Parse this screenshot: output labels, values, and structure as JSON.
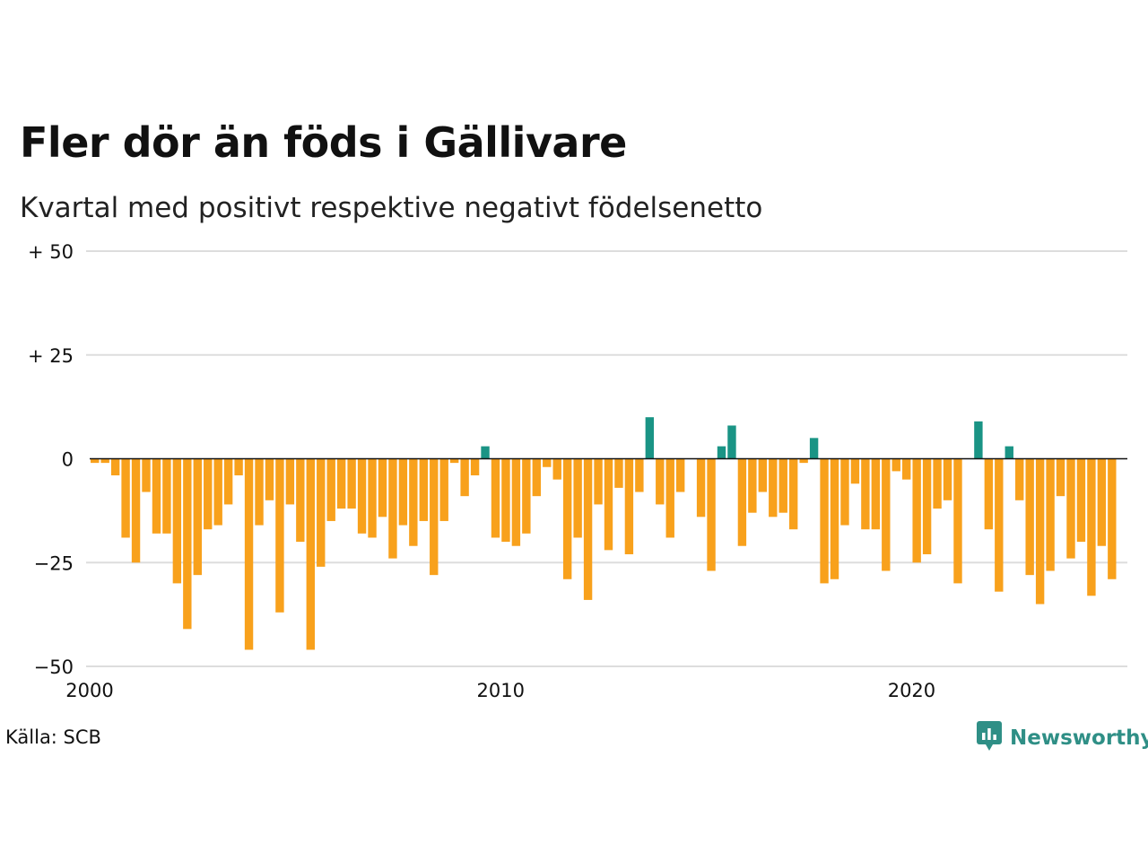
{
  "header": {
    "title": "Fler dör än föds i Gällivare",
    "subtitle": "Kvartal med positivt respektive negativt födelsenetto"
  },
  "footer": {
    "source": "Källa: SCB",
    "brand": "Newsworthy",
    "brand_icon": "bar-chart-speech-bubble-icon"
  },
  "colors": {
    "positive": "#1a9485",
    "negative": "#f8a11c",
    "grid": "#dddddd",
    "zero_line": "#111111",
    "brand": "#2f8f86"
  },
  "chart_data": {
    "type": "bar",
    "xlim": [
      2000,
      2025.25
    ],
    "ylim": [
      -50,
      50
    ],
    "y_ticks": [
      {
        "value": 50,
        "label": "+ 50"
      },
      {
        "value": 25,
        "label": "+ 25"
      },
      {
        "value": 0,
        "label": "0"
      },
      {
        "value": -25,
        "label": "−25"
      },
      {
        "value": -50,
        "label": "−50"
      }
    ],
    "x_ticks": [
      {
        "value": 2000,
        "label": "2000"
      },
      {
        "value": 2010,
        "label": "2010"
      },
      {
        "value": 2020,
        "label": "2020"
      }
    ],
    "grid": true,
    "series": [
      {
        "values": [
          -1,
          -1,
          -4,
          -19,
          -25,
          -8,
          -18,
          -18,
          -30,
          -41,
          -28,
          -17,
          -16,
          -11,
          -4,
          -46,
          -16,
          -10,
          -37,
          -11,
          -20,
          -46,
          -26,
          -15,
          -12,
          -12,
          -18,
          -19,
          -14,
          -24,
          -16,
          -21,
          -15,
          -28,
          -15,
          -1,
          -9,
          -4,
          3,
          -19,
          -20,
          -21,
          -18,
          -9,
          -2,
          -5,
          -29,
          -19,
          -34,
          -11,
          -22,
          -7,
          -23,
          -8,
          10,
          -11,
          -19,
          -8,
          0,
          -14,
          -27,
          3,
          8,
          -21,
          -13,
          -8,
          -14,
          -13,
          -17,
          -1,
          5,
          -30,
          -29,
          -16,
          -6,
          -17,
          -17,
          -27,
          -3,
          -5,
          -25,
          -23,
          -12,
          -10,
          -30,
          0,
          9,
          -17,
          -32,
          3,
          -10,
          -28,
          -35,
          -27,
          -9,
          -24,
          -20,
          -33,
          -21,
          -29
        ]
      }
    ]
  }
}
